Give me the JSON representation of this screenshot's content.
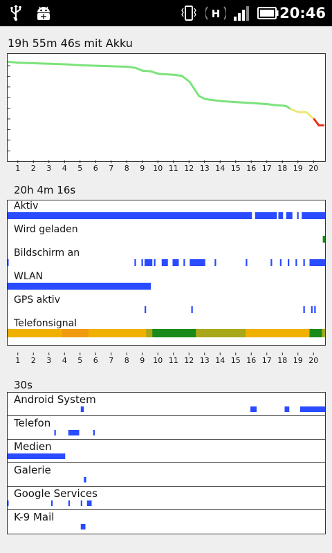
{
  "status_bar": {
    "time": "20:46",
    "icons": [
      "usb-icon",
      "android-debug-icon",
      "vibrate-icon",
      "hspa-data-icon",
      "signal-icon",
      "battery-icon"
    ]
  },
  "section1": {
    "title": "19h 55m 46s mit Akku"
  },
  "section2": {
    "title": "20h 4m 16s"
  },
  "section3": {
    "title": "30s"
  },
  "x_ticks": [
    "1",
    "2",
    "3",
    "4",
    "5",
    "6",
    "7",
    "8",
    "9",
    "10",
    "11",
    "12",
    "13",
    "14",
    "15",
    "16",
    "17",
    "18",
    "19",
    "20"
  ],
  "colors": {
    "accent": "#2a4bff",
    "charge": "#1a8a1a",
    "wlan": "#2a4bff",
    "signal_good": "#1a8a1a",
    "signal_mid": "#a8a81a",
    "signal_low": "#f0b000"
  },
  "chart_data": {
    "type": "line",
    "x": [
      0.3,
      1.0,
      2.0,
      3.0,
      4.0,
      5.0,
      6.0,
      7.0,
      8.0,
      8.5,
      9.0,
      9.5,
      10.0,
      10.5,
      11.0,
      11.5,
      12.0,
      12.3,
      12.6,
      13.0,
      13.5,
      14.0,
      14.5,
      15.0,
      16.0,
      17.0,
      17.5,
      18.0,
      18.2,
      18.5,
      19.0,
      19.5,
      20.0,
      20.3,
      20.6
    ],
    "y": [
      95,
      94,
      93.5,
      93,
      92.5,
      91.5,
      91,
      90.5,
      90,
      89,
      86,
      85.5,
      83,
      82.5,
      82,
      81,
      75,
      68,
      61,
      58,
      57,
      56,
      55.5,
      55,
      54,
      53,
      52,
      51.5,
      51,
      48,
      45,
      45,
      38,
      32,
      32
    ],
    "segment_colors": [
      {
        "from": 0.3,
        "to": 18.4,
        "color": "#7be37b"
      },
      {
        "from": 18.4,
        "to": 19.8,
        "color": "#ece878"
      },
      {
        "from": 19.8,
        "to": 20.6,
        "color": "#e83018"
      }
    ],
    "xlim": [
      0.3,
      20.6
    ],
    "ylim": [
      0,
      100
    ]
  },
  "timeline": {
    "rows": [
      {
        "label": "Aktiv",
        "color": "#2a4bff",
        "spans": [
          [
            0.3,
            16.0
          ],
          [
            16.2,
            17.6
          ],
          [
            17.7,
            18.0
          ],
          [
            18.2,
            18.6
          ],
          [
            18.9,
            19.0
          ],
          [
            19.2,
            20.7
          ]
        ]
      },
      {
        "label": "Wird geladen",
        "color": "#1a8a1a",
        "spans": [
          [
            20.55,
            20.7
          ]
        ]
      },
      {
        "label": "Bildschirm an",
        "color": "#2a4bff",
        "spans": [
          [
            0.3,
            0.35
          ],
          [
            8.45,
            8.55
          ],
          [
            8.9,
            9.0
          ],
          [
            9.1,
            9.6
          ],
          [
            9.7,
            9.8
          ],
          [
            10.2,
            10.6
          ],
          [
            10.9,
            11.3
          ],
          [
            11.6,
            11.7
          ],
          [
            12.0,
            13.0
          ],
          [
            13.6,
            13.7
          ],
          [
            15.6,
            15.7
          ],
          [
            17.2,
            17.3
          ],
          [
            17.8,
            17.9
          ],
          [
            18.3,
            18.4
          ],
          [
            18.8,
            18.9
          ],
          [
            19.3,
            19.4
          ],
          [
            19.7,
            20.7
          ]
        ]
      },
      {
        "label": "WLAN",
        "color": "#2a4bff",
        "spans": [
          [
            0.3,
            9.5
          ]
        ]
      },
      {
        "label": "GPS aktiv",
        "color": "#2a4bff",
        "spans": [
          [
            9.1,
            9.2
          ],
          [
            12.1,
            12.2
          ],
          [
            19.3,
            19.4
          ],
          [
            19.8,
            19.9
          ],
          [
            20.0,
            20.1
          ]
        ]
      },
      {
        "label": "Telefonsignal",
        "color": "#f0b000",
        "spans": [
          [
            0.3,
            20.7
          ]
        ],
        "overlay": [
          {
            "from": 3.8,
            "to": 5.0,
            "color": "#f09a10"
          },
          {
            "from": 5.0,
            "to": 5.5,
            "color": "#f09a10"
          },
          {
            "from": 9.2,
            "to": 9.6,
            "color": "#a8a81a"
          },
          {
            "from": 9.6,
            "to": 12.4,
            "color": "#1a8a1a"
          },
          {
            "from": 12.4,
            "to": 14.0,
            "color": "#a8a81a"
          },
          {
            "from": 14.0,
            "to": 15.6,
            "color": "#a8a81a"
          },
          {
            "from": 19.7,
            "to": 20.5,
            "color": "#1a8a1a"
          },
          {
            "from": 20.5,
            "to": 20.7,
            "color": "#a8a81a"
          }
        ]
      }
    ]
  },
  "apps": [
    {
      "name": "Android System",
      "color": "#2a4bff",
      "spans": [
        [
          5.0,
          5.2
        ],
        [
          15.9,
          16.3
        ],
        [
          18.1,
          18.4
        ],
        [
          19.1,
          20.7
        ]
      ]
    },
    {
      "name": "Telefon",
      "color": "#2a4bff",
      "spans": [
        [
          3.3,
          3.4
        ],
        [
          4.2,
          4.9
        ],
        [
          5.8,
          5.9
        ]
      ]
    },
    {
      "name": "Medien",
      "color": "#2a4bff",
      "spans": [
        [
          0.3,
          4.0
        ]
      ]
    },
    {
      "name": "Galerie",
      "color": "#2a4bff",
      "spans": [
        [
          5.2,
          5.35
        ]
      ]
    },
    {
      "name": "Google Services",
      "color": "#2a4bff",
      "spans": [
        [
          0.3,
          0.35
        ],
        [
          3.1,
          3.2
        ],
        [
          4.2,
          4.3
        ],
        [
          5.0,
          5.1
        ],
        [
          5.4,
          5.7
        ]
      ]
    },
    {
      "name": "K-9 Mail",
      "color": "#2a4bff",
      "spans": [
        [
          5.0,
          5.3
        ]
      ]
    }
  ]
}
